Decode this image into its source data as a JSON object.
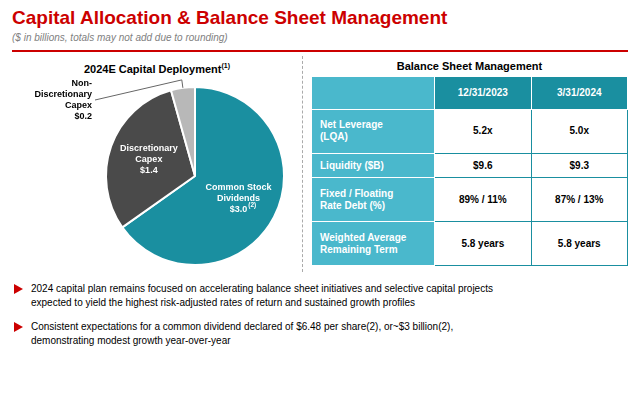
{
  "chart_data": {
    "type": "pie",
    "title": "Capital Allocation & Balance Sheet Management",
    "subtitle": "($ in billions, totals may not add due to rounding)",
    "title_color": "#cc0000",
    "subtitle_color": "#808080",
    "accent_color": "#cc0000",
    "section_title": "2024E Capital Deployment",
    "section_note": "(1)",
    "categories": [
      "Common Stock\nDividends",
      "Discretionary\nCapex",
      "Non-\nDiscretionary\nCapex"
    ],
    "values": [
      3.0,
      1.4,
      0.2
    ],
    "value_labels": [
      "$3.0",
      "$1.4",
      "$0.2"
    ],
    "label_notes": [
      "(2)",
      null,
      null
    ],
    "colors": [
      "#1a8fa0",
      "#4a4a4a",
      "#b8b8b8"
    ],
    "data_labels": true,
    "legend": false,
    "table": {
      "title": "Balance Sheet Management",
      "header_color": "#1a8fa0",
      "row_color": "#4ab8cc",
      "columns": [
        "12/31/2023",
        "3/31/2024"
      ],
      "rows": [
        [
          "Net Leverage\n(LQA)",
          "5.2x",
          "5.0x"
        ],
        [
          "Liquidity ($B)",
          "$9.6",
          "$9.3"
        ],
        [
          "Fixed / Floating\nRate Debt (%)",
          "89% / 11%",
          "87% / 13%"
        ],
        [
          "Weighted Average\nRemaining Term",
          "5.8 years",
          "5.8 years"
        ]
      ]
    },
    "notes": [
      "2024 capital plan remains focused on accelerating balance sheet initiatives and selective capital projects\nexpected to yield the highest risk-adjusted rates of return and sustained growth profiles",
      "Consistent expectations for a common dividend declared of $6.48 per share(2), or~$3 billion(2),\ndemonstrating modest growth year-over-year"
    ]
  }
}
